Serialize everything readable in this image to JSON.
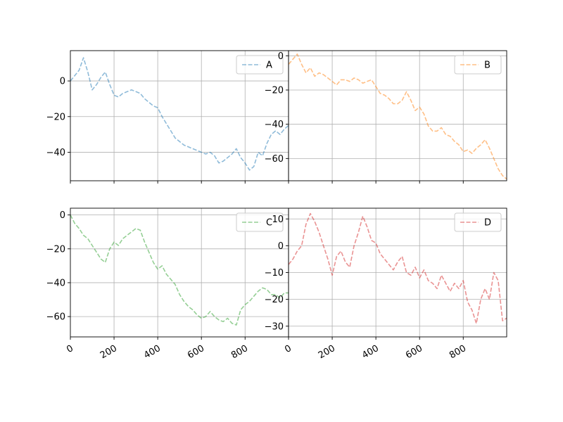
{
  "chart_data": [
    {
      "type": "line",
      "series": [
        {
          "name": "A",
          "color": "#1f77b4",
          "linestyle": "dashed",
          "alpha": 0.5,
          "x": [
            0,
            20,
            40,
            60,
            80,
            100,
            120,
            140,
            160,
            180,
            200,
            220,
            240,
            260,
            280,
            300,
            320,
            340,
            360,
            380,
            400,
            420,
            440,
            460,
            480,
            500,
            520,
            540,
            560,
            580,
            600,
            620,
            640,
            660,
            680,
            700,
            720,
            740,
            760,
            780,
            800,
            820,
            840,
            860,
            880,
            900,
            920,
            940,
            960,
            980,
            999
          ],
          "y": [
            0,
            3,
            6,
            13,
            5,
            -5,
            -2,
            2,
            5,
            -2,
            -8,
            -9,
            -7,
            -6,
            -5,
            -6,
            -7,
            -10,
            -12,
            -14,
            -15,
            -20,
            -24,
            -28,
            -32,
            -34,
            -36,
            -37,
            -38,
            -39,
            -40,
            -41,
            -40,
            -42,
            -46,
            -45,
            -43,
            -41,
            -38,
            -43,
            -46,
            -50,
            -48,
            -40,
            -42,
            -35,
            -30,
            -28,
            -30,
            -27,
            -25
          ]
        }
      ],
      "xlim": [
        0,
        999
      ],
      "ylim": [
        -56,
        17
      ],
      "xticks": [],
      "yticks": [
        0,
        -20,
        -40
      ],
      "ytick_labels": [
        "0",
        "−20",
        "−40"
      ],
      "grid": true,
      "legend": "upper-right"
    },
    {
      "type": "line",
      "series": [
        {
          "name": "B",
          "color": "#ff7f0e",
          "linestyle": "dashed",
          "alpha": 0.5,
          "x": [
            0,
            20,
            40,
            60,
            80,
            100,
            120,
            140,
            160,
            180,
            200,
            220,
            240,
            260,
            280,
            300,
            320,
            340,
            360,
            380,
            400,
            420,
            440,
            460,
            480,
            500,
            520,
            540,
            560,
            580,
            600,
            620,
            640,
            660,
            680,
            700,
            720,
            740,
            760,
            780,
            800,
            820,
            840,
            860,
            880,
            900,
            920,
            940,
            960,
            980,
            999
          ],
          "y": [
            -5,
            -2,
            1,
            -5,
            -10,
            -7,
            -12,
            -10,
            -11,
            -13,
            -15,
            -17,
            -14,
            -14,
            -15,
            -13,
            -14,
            -16,
            -15,
            -14,
            -18,
            -22,
            -23,
            -25,
            -28,
            -28,
            -26,
            -21,
            -26,
            -32,
            -30,
            -34,
            -41,
            -44,
            -44,
            -42,
            -46,
            -47,
            -50,
            -52,
            -56,
            -55,
            -57,
            -54,
            -52,
            -49,
            -54,
            -60,
            -66,
            -70,
            -72
          ]
        }
      ],
      "xlim": [
        0,
        999
      ],
      "ylim": [
        -73,
        3
      ],
      "xticks": [],
      "yticks": [
        0,
        -20,
        -40,
        -60
      ],
      "ytick_labels": [
        "0",
        "−20",
        "−40",
        "−60"
      ],
      "grid": true,
      "legend": "upper-right"
    },
    {
      "type": "line",
      "series": [
        {
          "name": "C",
          "color": "#2ca02c",
          "linestyle": "dashed",
          "alpha": 0.5,
          "x": [
            0,
            20,
            40,
            60,
            80,
            100,
            120,
            140,
            160,
            180,
            200,
            220,
            240,
            260,
            280,
            300,
            320,
            340,
            360,
            380,
            400,
            420,
            440,
            460,
            480,
            500,
            520,
            540,
            560,
            580,
            600,
            620,
            640,
            660,
            680,
            700,
            720,
            740,
            760,
            780,
            800,
            820,
            840,
            860,
            880,
            900,
            920,
            940,
            960,
            980,
            999
          ],
          "y": [
            0,
            -5,
            -8,
            -12,
            -14,
            -18,
            -22,
            -26,
            -28,
            -20,
            -16,
            -18,
            -14,
            -12,
            -10,
            -8,
            -9,
            -16,
            -22,
            -28,
            -32,
            -30,
            -35,
            -38,
            -41,
            -47,
            -51,
            -54,
            -56,
            -59,
            -61,
            -60,
            -57,
            -60,
            -62,
            -63,
            -61,
            -64,
            -65,
            -56,
            -53,
            -51,
            -48,
            -45,
            -43,
            -44,
            -47,
            -47,
            -49,
            -46,
            -46
          ]
        }
      ],
      "xlim": [
        0,
        999
      ],
      "ylim": [
        -72,
        4
      ],
      "xticks": [
        0,
        200,
        400,
        600,
        800
      ],
      "xtick_labels": [
        "0",
        "200",
        "400",
        "600",
        "800"
      ],
      "yticks": [
        0,
        -20,
        -40,
        -60
      ],
      "ytick_labels": [
        "0",
        "−20",
        "−40",
        "−60"
      ],
      "grid": true,
      "legend": "upper-right"
    },
    {
      "type": "line",
      "series": [
        {
          "name": "D",
          "color": "#d62728",
          "linestyle": "dashed",
          "alpha": 0.5,
          "x": [
            0,
            20,
            40,
            60,
            80,
            100,
            120,
            140,
            160,
            180,
            200,
            220,
            240,
            260,
            280,
            300,
            320,
            340,
            360,
            380,
            400,
            420,
            440,
            460,
            480,
            500,
            520,
            540,
            560,
            580,
            600,
            620,
            640,
            660,
            680,
            700,
            720,
            740,
            760,
            780,
            800,
            820,
            840,
            860,
            880,
            900,
            920,
            940,
            960,
            980,
            999
          ],
          "y": [
            -7,
            -5,
            -2,
            0,
            8,
            12,
            9,
            5,
            0,
            -5,
            -11,
            -4,
            -2,
            -6,
            -8,
            0,
            5,
            11,
            7,
            2,
            1,
            -3,
            -5,
            -7,
            -9,
            -6,
            -4,
            -10,
            -11,
            -8,
            -12,
            -9,
            -13,
            -14,
            -16,
            -11,
            -14,
            -17,
            -14,
            -16,
            -13,
            -21,
            -24,
            -29,
            -20,
            -16,
            -20,
            -10,
            -13,
            -28,
            -27
          ]
        }
      ],
      "xlim": [
        0,
        999
      ],
      "ylim": [
        -34,
        14
      ],
      "xticks": [
        0,
        200,
        400,
        600,
        800
      ],
      "xtick_labels": [
        "0",
        "200",
        "400",
        "600",
        "800"
      ],
      "yticks": [
        10,
        0,
        -10,
        -20,
        -30
      ],
      "ytick_labels": [
        "10",
        "0",
        "−10",
        "−20",
        "−30"
      ],
      "grid": true,
      "legend": "upper-right"
    }
  ]
}
